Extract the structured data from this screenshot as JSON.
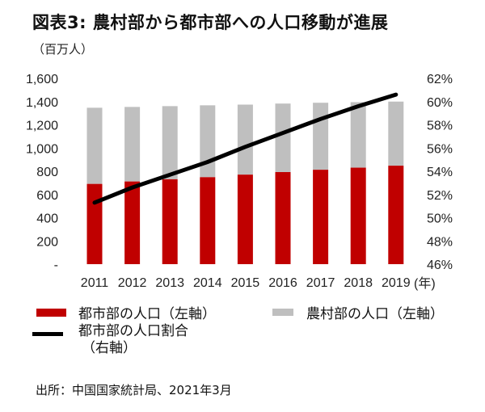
{
  "chart_data": {
    "type": "bar",
    "title": "図表3:  農村部から都市部への人口移動が進展",
    "ylabel": "（百万人）",
    "xlabel": "(年)",
    "categories": [
      "2011",
      "2012",
      "2013",
      "2014",
      "2015",
      "2016",
      "2017",
      "2018",
      "2019"
    ],
    "series": [
      {
        "name": "都市部の人口（左軸）",
        "kind": "stacked-bar",
        "axis": "left",
        "color": "#c00000",
        "values": [
          691,
          712,
          731,
          749,
          771,
          793,
          813,
          831,
          848
        ]
      },
      {
        "name": "農村部の人口（左軸）",
        "kind": "stacked-bar",
        "axis": "left",
        "color": "#bfbfbf",
        "values": [
          656,
          642,
          630,
          619,
          603,
          590,
          577,
          564,
          552
        ]
      },
      {
        "name": "都市部の人口割合",
        "name_line2": "（右軸）",
        "kind": "line",
        "axis": "right",
        "color": "#000000",
        "values": [
          51.3,
          52.6,
          53.7,
          54.8,
          56.1,
          57.3,
          58.5,
          59.6,
          60.6
        ]
      }
    ],
    "ylim_left": [
      0,
      1600
    ],
    "ylim_right": [
      46,
      62
    ],
    "left_ticks": [
      "-",
      "200",
      "400",
      "600",
      "800",
      "1,000",
      "1,200",
      "1,400",
      "1,600"
    ],
    "left_tick_values": [
      0,
      200,
      400,
      600,
      800,
      1000,
      1200,
      1400,
      1600
    ],
    "right_ticks": [
      "46%",
      "48%",
      "50%",
      "52%",
      "54%",
      "56%",
      "58%",
      "60%",
      "62%"
    ],
    "right_tick_values": [
      46,
      48,
      50,
      52,
      54,
      56,
      58,
      60,
      62
    ],
    "grid": false,
    "legend_position": "bottom"
  },
  "source": "出所：中国国家統計局、2021年3月"
}
